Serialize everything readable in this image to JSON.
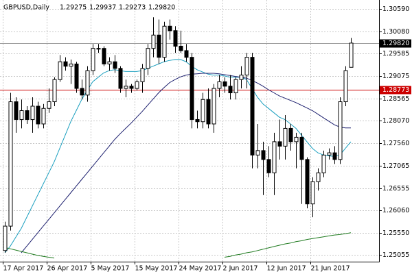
{
  "chart_data": {
    "type": "candlestick",
    "title": "GBPUSD,Daily",
    "ohlc_header": [
      "1.29275",
      "1.29937",
      "1.29273",
      "1.29820"
    ],
    "categories": [
      "17 Apr 2017",
      null,
      null,
      null,
      null,
      null,
      null,
      null,
      "26 Apr 2017",
      null,
      null,
      null,
      null,
      null,
      null,
      null,
      "5 May 2017",
      null,
      null,
      null,
      null,
      null,
      null,
      null,
      "15 May 2017",
      null,
      null,
      null,
      null,
      null,
      null,
      null,
      "24 May 2017",
      null,
      null,
      null,
      null,
      null,
      null,
      null,
      "2 Jun 2017",
      null,
      null,
      null,
      null,
      null,
      null,
      null,
      "12 Jun 2017",
      null,
      null,
      null,
      null,
      null,
      null,
      null,
      "21 Jun 2017",
      null,
      null,
      null,
      null,
      null,
      null,
      null
    ],
    "open": [
      1.2515,
      1.257,
      1.285,
      1.281,
      1.283,
      1.281,
      1.284,
      1.28,
      1.2835,
      1.285,
      1.29,
      1.294,
      1.293,
      1.2935,
      1.288,
      1.2865,
      1.292,
      1.297,
      1.297,
      1.2935,
      1.294,
      1.2925,
      1.288,
      1.2885,
      1.288,
      1.2895,
      1.2925,
      1.297,
      1.3,
      1.295,
      1.302,
      1.301,
      1.2975,
      1.2965,
      1.295,
      1.281,
      1.2805,
      1.2855,
      1.28,
      1.288,
      1.2895,
      1.2885,
      1.287,
      1.29,
      1.291,
      1.295,
      1.273,
      1.274,
      1.272,
      1.269,
      1.276,
      1.275,
      1.279,
      1.276,
      1.277,
      1.272,
      1.262,
      1.267,
      1.269,
      1.273,
      1.2735,
      1.272,
      1.285,
      1.29275
    ],
    "high": [
      1.258,
      1.287,
      1.286,
      1.2855,
      1.284,
      1.286,
      1.285,
      1.2845,
      1.288,
      1.2905,
      1.2955,
      1.295,
      1.2945,
      1.294,
      1.29,
      1.293,
      1.298,
      1.298,
      1.2975,
      1.295,
      1.2955,
      1.293,
      1.29,
      1.289,
      1.29,
      1.2935,
      1.298,
      1.304,
      1.3035,
      1.303,
      1.3035,
      1.302,
      1.301,
      1.298,
      1.296,
      1.283,
      1.287,
      1.288,
      1.289,
      1.291,
      1.2905,
      1.291,
      1.2905,
      1.293,
      1.296,
      1.296,
      1.28,
      1.276,
      1.275,
      1.278,
      1.281,
      1.282,
      1.28,
      1.278,
      1.278,
      1.2725,
      1.268,
      1.27,
      1.274,
      1.2745,
      1.275,
      1.286,
      1.293,
      1.29937
    ],
    "low": [
      1.251,
      1.256,
      1.278,
      1.279,
      1.28,
      1.278,
      1.279,
      1.279,
      1.2825,
      1.284,
      1.2895,
      1.292,
      1.289,
      1.287,
      1.2855,
      1.285,
      1.291,
      1.296,
      1.293,
      1.292,
      1.2915,
      1.287,
      1.286,
      1.287,
      1.2875,
      1.287,
      1.291,
      1.295,
      1.2935,
      1.294,
      1.299,
      1.296,
      1.296,
      1.294,
      1.279,
      1.279,
      1.279,
      1.279,
      1.278,
      1.286,
      1.287,
      1.2855,
      1.2855,
      1.288,
      1.288,
      1.27,
      1.27,
      1.264,
      1.268,
      1.264,
      1.272,
      1.272,
      1.274,
      1.27,
      1.262,
      1.261,
      1.259,
      1.265,
      1.268,
      1.272,
      1.271,
      1.271,
      1.284,
      1.29273
    ],
    "close": [
      1.257,
      1.285,
      1.281,
      1.283,
      1.281,
      1.284,
      1.28,
      1.2835,
      1.285,
      1.29,
      1.294,
      1.293,
      1.2935,
      1.288,
      1.2865,
      1.292,
      1.297,
      1.297,
      1.2935,
      1.294,
      1.2925,
      1.288,
      1.2885,
      1.288,
      1.2895,
      1.2925,
      1.297,
      1.3,
      1.295,
      1.302,
      1.301,
      1.2975,
      1.2965,
      1.295,
      1.281,
      1.2805,
      1.2855,
      1.28,
      1.288,
      1.2895,
      1.2885,
      1.287,
      1.29,
      1.291,
      1.295,
      1.273,
      1.274,
      1.272,
      1.269,
      1.276,
      1.275,
      1.279,
      1.276,
      1.277,
      1.272,
      1.262,
      1.267,
      1.269,
      1.273,
      1.2735,
      1.272,
      1.285,
      1.292,
      1.2982
    ],
    "lines": [
      {
        "color": "#1a9fbf",
        "values": [
          1.251,
          1.2525,
          1.2545,
          1.2565,
          1.259,
          1.2615,
          1.264,
          1.2665,
          1.269,
          1.2715,
          1.2745,
          1.2775,
          1.2805,
          1.283,
          1.2855,
          1.2875,
          1.2895,
          1.2905,
          1.2915,
          1.292,
          1.2922,
          1.292,
          1.2918,
          1.2918,
          1.2918,
          1.292,
          1.2925,
          1.293,
          1.2935,
          1.294,
          1.2943,
          1.2945,
          1.2945,
          1.294,
          1.293,
          1.2922,
          1.2917,
          1.2912,
          1.291,
          1.291,
          1.2908,
          1.2905,
          1.2905,
          1.2905,
          1.29,
          1.288,
          1.286,
          1.2845,
          1.2835,
          1.2825,
          1.2815,
          1.281,
          1.28,
          1.279,
          1.2775,
          1.276,
          1.2745,
          1.2735,
          1.273,
          1.2728,
          1.2727,
          1.273,
          1.2745,
          1.276
        ]
      },
      {
        "color": "#1c1f6e",
        "values": [
          null,
          null,
          null,
          1.251,
          1.2525,
          1.254,
          1.2555,
          1.257,
          1.2585,
          1.26,
          1.2615,
          1.263,
          1.2645,
          1.266,
          1.2675,
          1.269,
          1.2705,
          1.272,
          1.2735,
          1.275,
          1.2765,
          1.2778,
          1.279,
          1.2802,
          1.2815,
          1.2828,
          1.2842,
          1.2856,
          1.287,
          1.2882,
          1.2893,
          1.29,
          1.2906,
          1.291,
          1.2912,
          1.2913,
          1.2914,
          1.2914,
          1.2914,
          1.2913,
          1.2911,
          1.2909,
          1.2907,
          1.2905,
          1.2903,
          1.2898,
          1.2892,
          1.2885,
          1.2877,
          1.287,
          1.2863,
          1.2858,
          1.2853,
          1.2848,
          1.2842,
          1.2836,
          1.283,
          1.2822,
          1.2814,
          1.2806,
          1.2798,
          1.2793,
          1.2791,
          1.2791
        ]
      },
      {
        "color": "#1e7a1e",
        "values": [
          1.2522,
          1.2519,
          1.2516,
          1.2513,
          1.251,
          1.2507,
          1.2504,
          1.2502,
          1.25,
          1.2498,
          null,
          null,
          null,
          null,
          null,
          null,
          null,
          null,
          null,
          null,
          null,
          null,
          null,
          null,
          null,
          null,
          null,
          null,
          null,
          null,
          null,
          null,
          null,
          null,
          null,
          null,
          null,
          null,
          null,
          null,
          1.25,
          1.2502,
          1.2505,
          1.2507,
          1.251,
          1.2512,
          1.2515,
          1.2518,
          1.2521,
          1.2524,
          1.2527,
          1.253,
          1.2532,
          1.2535,
          1.2537,
          1.254,
          1.2542,
          1.2544,
          1.2546,
          1.2548,
          1.255,
          1.2551,
          1.2553,
          1.2555
        ]
      }
    ],
    "levels": [
      {
        "value": 1.2982,
        "label": "1.29820",
        "color": "#a0a0a0",
        "box": "#000000"
      },
      {
        "value": 1.28773,
        "label": "1.28773",
        "color": "#cc0000",
        "box": "#cc0000"
      }
    ],
    "ylim": [
      1.249,
      1.3079
    ],
    "yticks": [
      {
        "value": 1.3059,
        "label": "1.30590"
      },
      {
        "value": 1.3008,
        "label": "1.30080"
      },
      {
        "value": 1.29585,
        "label": "1.29585"
      },
      {
        "value": 1.29075,
        "label": "1.29075"
      },
      {
        "value": 1.28565,
        "label": "1.28565"
      },
      {
        "value": 1.2807,
        "label": "1.28070"
      },
      {
        "value": 1.2756,
        "label": "1.27560"
      },
      {
        "value": 1.27065,
        "label": "1.27065"
      },
      {
        "value": 1.26555,
        "label": "1.26555"
      },
      {
        "value": 1.2606,
        "label": "1.26060"
      },
      {
        "value": 1.2555,
        "label": "1.25550"
      },
      {
        "value": 1.25055,
        "label": "1.25055"
      }
    ],
    "grid": true
  }
}
